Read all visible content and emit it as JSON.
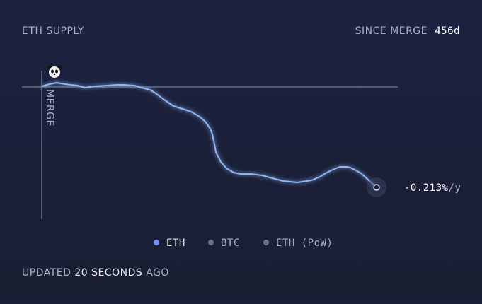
{
  "header": {
    "title": "ETH SUPPLY",
    "since_label": "SINCE MERGE",
    "since_value": "456d"
  },
  "chart": {
    "marker_label": "MERGE",
    "rate": "-0.213%",
    "rate_unit": "/y"
  },
  "legend": [
    "ETH",
    "BTC",
    "ETH (PoW)"
  ],
  "footer": {
    "prefix": "UPDATED",
    "time": "20 SECONDS",
    "suffix": "AGO"
  }
}
